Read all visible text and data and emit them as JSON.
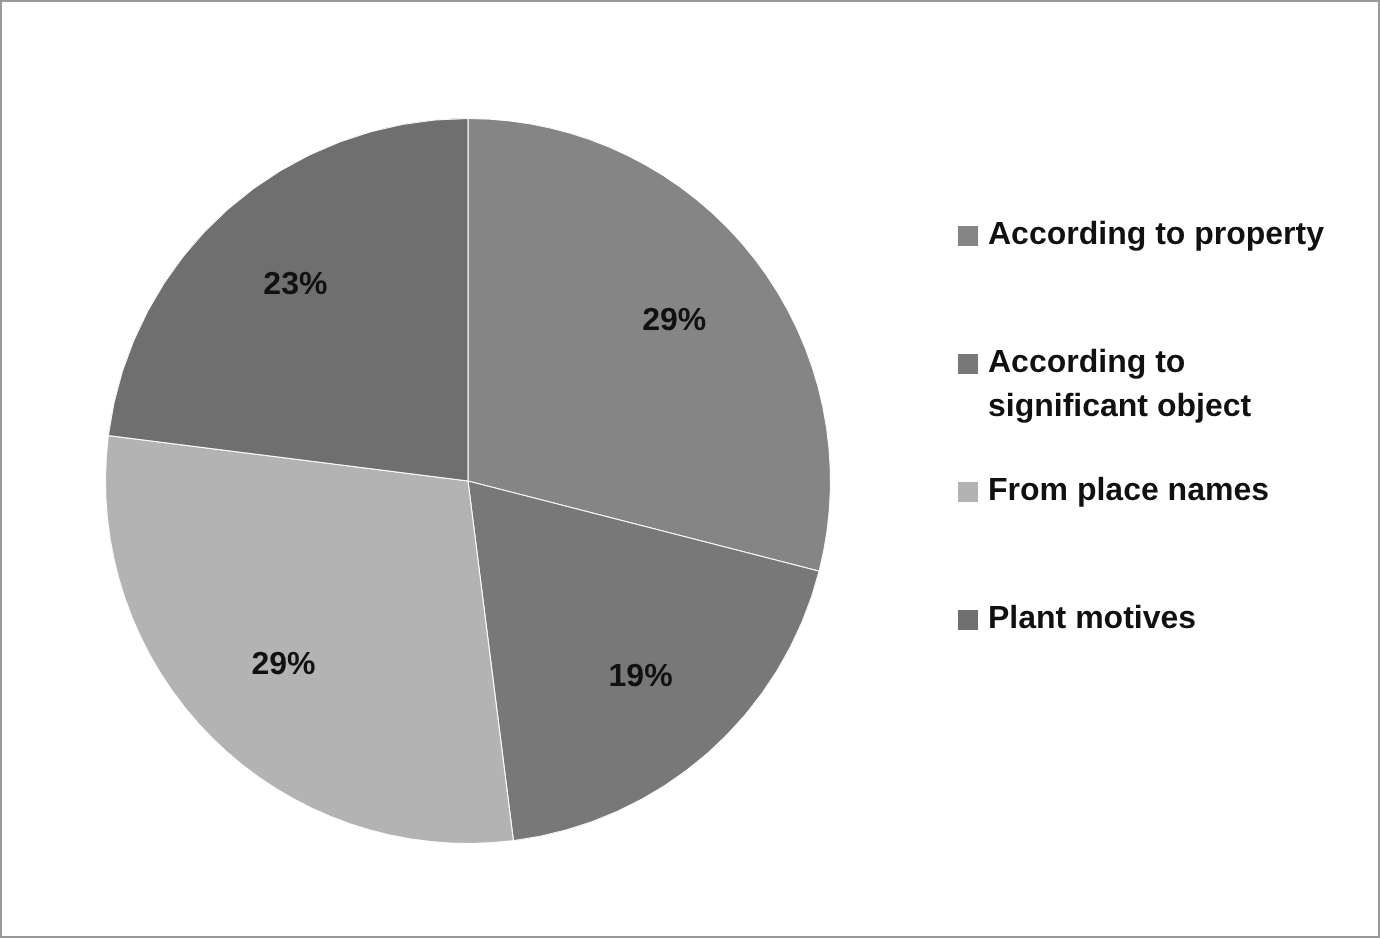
{
  "chart_data": {
    "type": "pie",
    "categories": [
      "According to property",
      "According to significant object",
      "From place names",
      "Plant motives"
    ],
    "values": [
      29,
      19,
      29,
      23
    ],
    "colors": [
      "#858585",
      "#787878",
      "#b3b3b3",
      "#6f6f6f"
    ],
    "value_labels": [
      "29%",
      "19%",
      "29%",
      "23%"
    ],
    "legend": "right"
  }
}
